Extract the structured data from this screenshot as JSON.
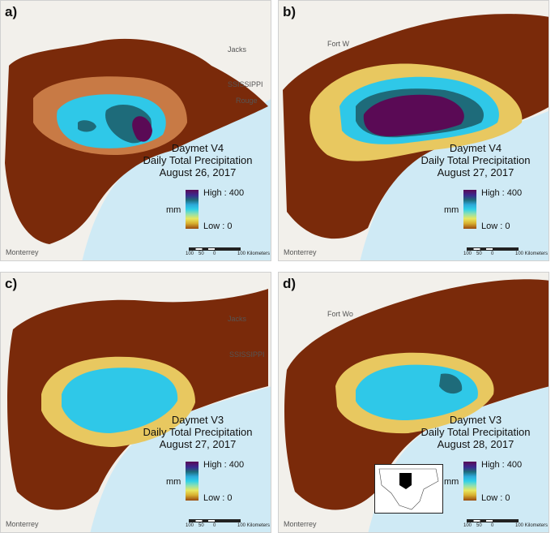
{
  "panels": [
    {
      "label": "a)",
      "product": "Daymet V4",
      "variable": "Daily Total Precipitation",
      "date": "August 26, 2017",
      "cities": [
        "Monterrey",
        "Jacks",
        "SSISSIPPI",
        "Rouge"
      ]
    },
    {
      "label": "b)",
      "product": "Daymet V4",
      "variable": "Daily Total Precipitation",
      "date": "August 27, 2017",
      "cities": [
        "Monterrey",
        "Fort W"
      ]
    },
    {
      "label": "c)",
      "product": "Daymet V3",
      "variable": "Daily Total Precipitation",
      "date": "August 27, 2017",
      "cities": [
        "Monterrey",
        "Jacks",
        "SSISSIPPI"
      ]
    },
    {
      "label": "d)",
      "product": "Daymet V3",
      "variable": "Daily Total Precipitation",
      "date": "August 28, 2017",
      "cities": [
        "Monterrey",
        "Fort Wo"
      ]
    }
  ],
  "legend": {
    "unit": "mm",
    "high": "High : 400",
    "low": "Low : 0"
  },
  "scalebar": {
    "ticks": [
      "100",
      "50",
      "0",
      "100 Kilometers"
    ]
  },
  "colors": {
    "dry": "#7a2a0a",
    "mid": "#c86a20",
    "yellow": "#e8e060",
    "cyan": "#2fc8e8",
    "teal": "#1e6b7a",
    "purple": "#5a0a55",
    "ocean": "#cfeaf5",
    "land": "#f2f0eb"
  }
}
